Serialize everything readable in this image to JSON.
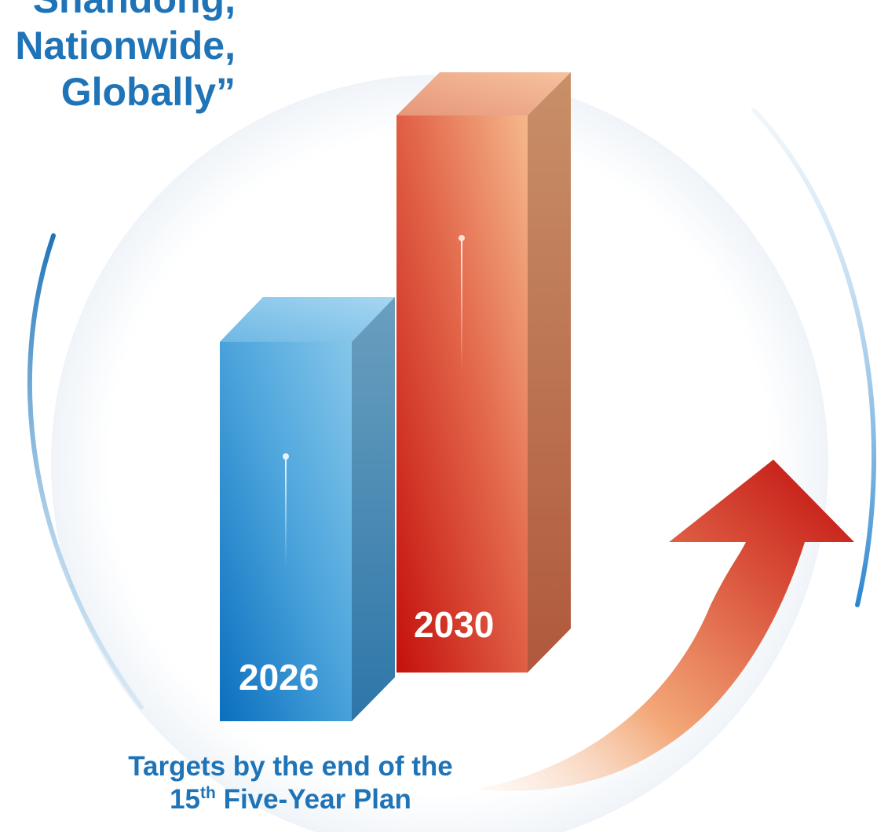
{
  "headline": {
    "line1": "Shandong,",
    "line2": "Nationwide,",
    "line3": "Globally”"
  },
  "bars": {
    "left_year": "2026",
    "right_year": "2030",
    "left_color": "#2c86cf",
    "right_color": "#d9432f"
  },
  "caption": {
    "line1": "Targets by the end of the",
    "ordinal_number": "15",
    "ordinal_suffix": "th",
    "line2_rest": " Five-Year Plan"
  },
  "icons": [
    "growth-arrow-icon"
  ],
  "colors": {
    "text_blue": "#1f74b8",
    "arrow_red": "#c01010",
    "arrow_orange": "#f3a878",
    "ring_blue": "#5aa2d6"
  }
}
